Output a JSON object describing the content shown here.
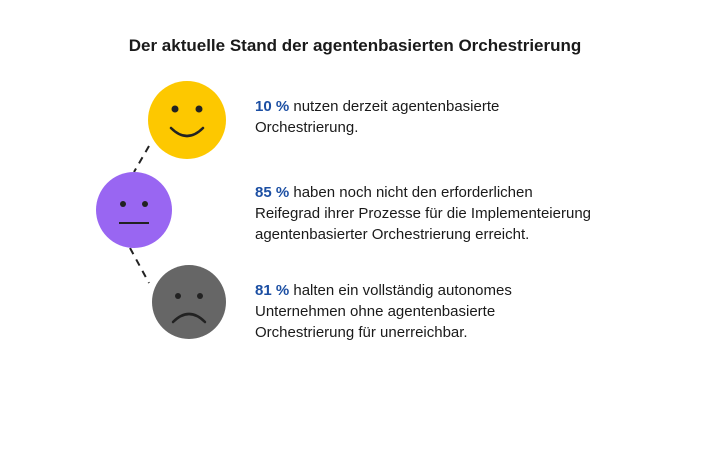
{
  "title": "Der aktuelle Stand der agentenbasierten Orchestrierung",
  "items": [
    {
      "percent": "10 %",
      "lines": [
        "nutzen derzeit agentenbasierte",
        "Orchestrierung."
      ]
    },
    {
      "percent": "85 %",
      "lines": [
        "haben noch nicht den erforderlichen",
        "Reifegrad ihrer Prozesse für die Implementeierung",
        "agentenbasierter Orchestrierung erreicht."
      ]
    },
    {
      "percent": "81 %",
      "lines": [
        "halten ein vollständig autonomes",
        "Unternehmen ohne agentenbasierte",
        "Orchestrierung für unerreichbar."
      ]
    }
  ]
}
